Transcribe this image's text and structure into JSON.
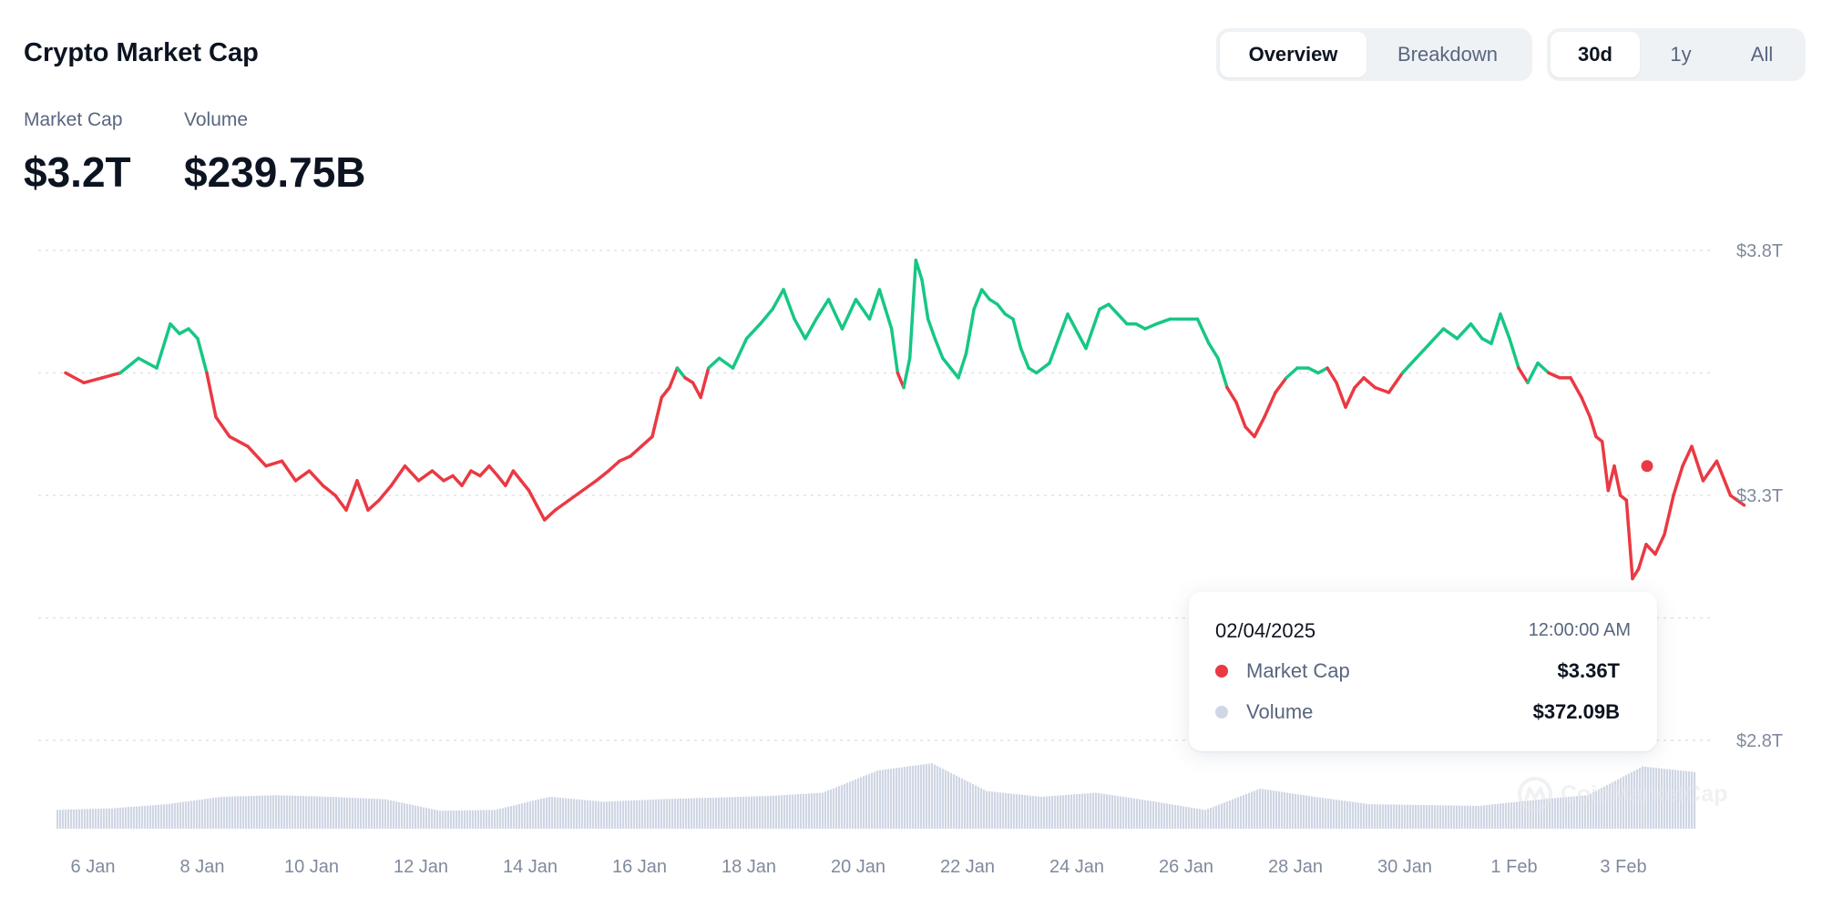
{
  "header": {
    "title": "Crypto Market Cap"
  },
  "view_tabs": [
    {
      "label": "Overview",
      "active": true
    },
    {
      "label": "Breakdown",
      "active": false
    }
  ],
  "range_tabs": [
    {
      "label": "30d",
      "active": true
    },
    {
      "label": "1y",
      "active": false
    },
    {
      "label": "All",
      "active": false
    }
  ],
  "stats": {
    "market_cap": {
      "label": "Market Cap",
      "value": "$3.2T"
    },
    "volume": {
      "label": "Volume",
      "value": "$239.75B"
    }
  },
  "tooltip": {
    "date": "02/04/2025",
    "time": "12:00:00 AM",
    "rows": [
      {
        "label": "Market Cap",
        "value": "$3.36T",
        "dot_color": "#ea3943"
      },
      {
        "label": "Volume",
        "value": "$372.09B",
        "dot_color": "#cfd6e4"
      }
    ]
  },
  "watermark": "CoinMarketCap",
  "colors": {
    "up": "#16c784",
    "down": "#ea3943",
    "volume": "#cfd6e4",
    "grid": "#dfe3e8",
    "axis_text": "#808a9d"
  },
  "chart_data": {
    "type": "line",
    "x_tick_labels": [
      "6 Jan",
      "8 Jan",
      "10 Jan",
      "12 Jan",
      "14 Jan",
      "16 Jan",
      "18 Jan",
      "20 Jan",
      "22 Jan",
      "24 Jan",
      "26 Jan",
      "28 Jan",
      "30 Jan",
      "1 Feb",
      "3 Feb"
    ],
    "y_tick_labels": [
      "$3.8T",
      "$3.3T",
      "$2.8T"
    ],
    "ylim": [
      2.8,
      3.8
    ],
    "baseline": 3.55,
    "grid": true,
    "x_range": [
      "2025-01-05",
      "2025-02-04"
    ],
    "series": [
      {
        "type": "line",
        "values_unit": "T USD",
        "points": [
          [
            "2025-01-05",
            3.55
          ],
          [
            "2025-01-05",
            3.53
          ],
          [
            "2025-01-05",
            3.54
          ],
          [
            "2025-01-06",
            3.55
          ],
          [
            "2025-01-06",
            3.58
          ],
          [
            "2025-01-06",
            3.56
          ],
          [
            "2025-01-07",
            3.65
          ],
          [
            "2025-01-07",
            3.63
          ],
          [
            "2025-01-07",
            3.64
          ],
          [
            "2025-01-07",
            3.62
          ],
          [
            "2025-01-07",
            3.55
          ],
          [
            "2025-01-07",
            3.46
          ],
          [
            "2025-01-08",
            3.42
          ],
          [
            "2025-01-08",
            3.4
          ],
          [
            "2025-01-08",
            3.36
          ],
          [
            "2025-01-09",
            3.37
          ],
          [
            "2025-01-09",
            3.33
          ],
          [
            "2025-01-09",
            3.35
          ],
          [
            "2025-01-09",
            3.32
          ],
          [
            "2025-01-10",
            3.3
          ],
          [
            "2025-01-10",
            3.27
          ],
          [
            "2025-01-10",
            3.33
          ],
          [
            "2025-01-10",
            3.27
          ],
          [
            "2025-01-10",
            3.29
          ],
          [
            "2025-01-11",
            3.32
          ],
          [
            "2025-01-11",
            3.36
          ],
          [
            "2025-01-11",
            3.33
          ],
          [
            "2025-01-11",
            3.35
          ],
          [
            "2025-01-12",
            3.33
          ],
          [
            "2025-01-12",
            3.34
          ],
          [
            "2025-01-12",
            3.32
          ],
          [
            "2025-01-12",
            3.35
          ],
          [
            "2025-01-12",
            3.34
          ],
          [
            "2025-01-12",
            3.36
          ],
          [
            "2025-01-13",
            3.34
          ],
          [
            "2025-01-13",
            3.32
          ],
          [
            "2025-01-13",
            3.35
          ],
          [
            "2025-01-13",
            3.33
          ],
          [
            "2025-01-13",
            3.31
          ],
          [
            "2025-01-13",
            3.28
          ],
          [
            "2025-01-13",
            3.25
          ],
          [
            "2025-01-14",
            3.27
          ],
          [
            "2025-01-14",
            3.29
          ],
          [
            "2025-01-14",
            3.31
          ],
          [
            "2025-01-14",
            3.33
          ],
          [
            "2025-01-15",
            3.35
          ],
          [
            "2025-01-15",
            3.37
          ],
          [
            "2025-01-15",
            3.38
          ],
          [
            "2025-01-15",
            3.4
          ],
          [
            "2025-01-15",
            3.42
          ],
          [
            "2025-01-16",
            3.5
          ],
          [
            "2025-01-16",
            3.52
          ],
          [
            "2025-01-16",
            3.56
          ],
          [
            "2025-01-16",
            3.54
          ],
          [
            "2025-01-16",
            3.53
          ],
          [
            "2025-01-16",
            3.5
          ],
          [
            "2025-01-16",
            3.56
          ],
          [
            "2025-01-17",
            3.58
          ],
          [
            "2025-01-17",
            3.56
          ],
          [
            "2025-01-17",
            3.62
          ],
          [
            "2025-01-17",
            3.65
          ],
          [
            "2025-01-18",
            3.68
          ],
          [
            "2025-01-18",
            3.72
          ],
          [
            "2025-01-18",
            3.66
          ],
          [
            "2025-01-18",
            3.62
          ],
          [
            "2025-01-18",
            3.66
          ],
          [
            "2025-01-19",
            3.7
          ],
          [
            "2025-01-19",
            3.64
          ],
          [
            "2025-01-19",
            3.7
          ],
          [
            "2025-01-19",
            3.66
          ],
          [
            "2025-01-20",
            3.72
          ],
          [
            "2025-01-20",
            3.68
          ],
          [
            "2025-01-20",
            3.64
          ],
          [
            "2025-01-20",
            3.55
          ],
          [
            "2025-01-20",
            3.52
          ],
          [
            "2025-01-20",
            3.58
          ],
          [
            "2025-01-20",
            3.78
          ],
          [
            "2025-01-20",
            3.74
          ],
          [
            "2025-01-20",
            3.66
          ],
          [
            "2025-01-21",
            3.62
          ],
          [
            "2025-01-21",
            3.58
          ],
          [
            "2025-01-21",
            3.56
          ],
          [
            "2025-01-21",
            3.54
          ],
          [
            "2025-01-21",
            3.59
          ],
          [
            "2025-01-21",
            3.68
          ],
          [
            "2025-01-21",
            3.72
          ],
          [
            "2025-01-22",
            3.7
          ],
          [
            "2025-01-22",
            3.69
          ],
          [
            "2025-01-22",
            3.67
          ],
          [
            "2025-01-22",
            3.66
          ],
          [
            "2025-01-22",
            3.6
          ],
          [
            "2025-01-22",
            3.56
          ],
          [
            "2025-01-22",
            3.55
          ],
          [
            "2025-01-23",
            3.57
          ],
          [
            "2025-01-23",
            3.67
          ],
          [
            "2025-01-23",
            3.6
          ],
          [
            "2025-01-24",
            3.68
          ],
          [
            "2025-01-24",
            3.69
          ],
          [
            "2025-01-24",
            3.67
          ],
          [
            "2025-01-24",
            3.65
          ],
          [
            "2025-01-24",
            3.65
          ],
          [
            "2025-01-24",
            3.64
          ],
          [
            "2025-01-25",
            3.65
          ],
          [
            "2025-01-25",
            3.66
          ],
          [
            "2025-01-25",
            3.66
          ],
          [
            "2025-01-25",
            3.66
          ],
          [
            "2025-01-26",
            3.61
          ],
          [
            "2025-01-26",
            3.58
          ],
          [
            "2025-01-26",
            3.52
          ],
          [
            "2025-01-26",
            3.49
          ],
          [
            "2025-01-26",
            3.44
          ],
          [
            "2025-01-26",
            3.42
          ],
          [
            "2025-01-27",
            3.46
          ],
          [
            "2025-01-27",
            3.51
          ],
          [
            "2025-01-27",
            3.54
          ],
          [
            "2025-01-27",
            3.56
          ],
          [
            "2025-01-27",
            3.56
          ],
          [
            "2025-01-28",
            3.55
          ],
          [
            "2025-01-28",
            3.56
          ],
          [
            "2025-01-28",
            3.53
          ],
          [
            "2025-01-28",
            3.48
          ],
          [
            "2025-01-28",
            3.52
          ],
          [
            "2025-01-28",
            3.54
          ],
          [
            "2025-01-29",
            3.52
          ],
          [
            "2025-01-29",
            3.51
          ],
          [
            "2025-01-29",
            3.55
          ],
          [
            "2025-01-29",
            3.58
          ],
          [
            "2025-01-30",
            3.61
          ],
          [
            "2025-01-30",
            3.64
          ],
          [
            "2025-01-30",
            3.62
          ],
          [
            "2025-01-30",
            3.65
          ],
          [
            "2025-01-31",
            3.62
          ],
          [
            "2025-01-31",
            3.61
          ],
          [
            "2025-01-31",
            3.67
          ],
          [
            "2025-01-31",
            3.62
          ],
          [
            "2025-01-31",
            3.56
          ],
          [
            "2025-01-31",
            3.53
          ],
          [
            "2025-02-01",
            3.57
          ],
          [
            "2025-02-01",
            3.55
          ],
          [
            "2025-02-01",
            3.54
          ],
          [
            "2025-02-01",
            3.54
          ],
          [
            "2025-02-01",
            3.5
          ],
          [
            "2025-02-02",
            3.46
          ],
          [
            "2025-02-02",
            3.42
          ],
          [
            "2025-02-02",
            3.41
          ],
          [
            "2025-02-02",
            3.31
          ],
          [
            "2025-02-02",
            3.36
          ],
          [
            "2025-02-02",
            3.3
          ],
          [
            "2025-02-02",
            3.29
          ],
          [
            "2025-02-02",
            3.13
          ],
          [
            "2025-02-02",
            3.15
          ],
          [
            "2025-02-03",
            3.2
          ],
          [
            "2025-02-03",
            3.18
          ],
          [
            "2025-02-03",
            3.22
          ],
          [
            "2025-02-03",
            3.3
          ],
          [
            "2025-02-03",
            3.36
          ],
          [
            "2025-02-03",
            3.4
          ],
          [
            "2025-02-04",
            3.33
          ],
          [
            "2025-02-04",
            3.37
          ],
          [
            "2025-02-04",
            3.3
          ],
          [
            "2025-02-04",
            3.28
          ]
        ]
      },
      {
        "type": "bar",
        "name": "Volume",
        "values_unit": "relative",
        "points": [
          [
            "2025-01-05",
            0.14
          ],
          [
            "2025-01-06",
            0.16
          ],
          [
            "2025-01-07",
            0.21
          ],
          [
            "2025-01-08",
            0.3
          ],
          [
            "2025-01-09",
            0.32
          ],
          [
            "2025-01-10",
            0.3
          ],
          [
            "2025-01-11",
            0.27
          ],
          [
            "2025-01-12",
            0.13
          ],
          [
            "2025-01-13",
            0.14
          ],
          [
            "2025-01-14",
            0.3
          ],
          [
            "2025-01-15",
            0.24
          ],
          [
            "2025-01-16",
            0.27
          ],
          [
            "2025-01-17",
            0.29
          ],
          [
            "2025-01-18",
            0.31
          ],
          [
            "2025-01-19",
            0.35
          ],
          [
            "2025-01-20",
            0.62
          ],
          [
            "2025-01-21",
            0.71
          ],
          [
            "2025-01-22",
            0.37
          ],
          [
            "2025-01-23",
            0.3
          ],
          [
            "2025-01-24",
            0.35
          ],
          [
            "2025-01-25",
            0.25
          ],
          [
            "2025-01-26",
            0.14
          ],
          [
            "2025-01-27",
            0.4
          ],
          [
            "2025-01-28",
            0.3
          ],
          [
            "2025-01-29",
            0.21
          ],
          [
            "2025-01-30",
            0.2
          ],
          [
            "2025-01-31",
            0.19
          ],
          [
            "2025-02-01",
            0.26
          ],
          [
            "2025-02-02",
            0.32
          ],
          [
            "2025-02-03",
            0.67
          ],
          [
            "2025-02-04",
            0.6
          ]
        ]
      }
    ],
    "highlight": {
      "date": "2025-02-04",
      "value": 3.36
    }
  }
}
